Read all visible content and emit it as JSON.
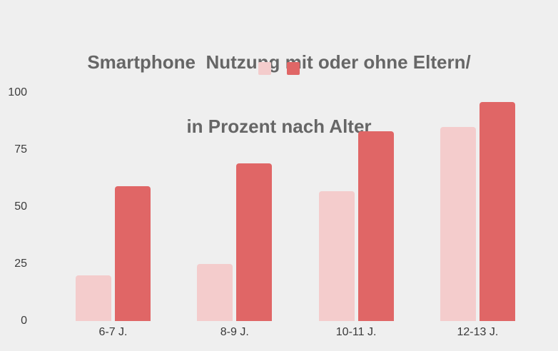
{
  "colors": {
    "background": "#efefef",
    "title_text": "#666666",
    "axis_text": "#3b3b3b"
  },
  "chart_data": {
    "type": "bar",
    "title_lines": [
      "Smartphone  Nutzung mit oder ohne Eltern/",
      "in Prozent nach Alter"
    ],
    "title": "Smartphone  Nutzung mit oder ohne Eltern/ in Prozent nach Alter",
    "categories": [
      "6-7 J.",
      "8-9 J.",
      "10-11 J.",
      "12-13 J."
    ],
    "series": [
      {
        "name": "",
        "color": "#f4cccc",
        "values": [
          20,
          25,
          57,
          85
        ]
      },
      {
        "name": "",
        "color": "#e06666",
        "values": [
          59,
          69,
          83,
          96
        ]
      }
    ],
    "xlabel": "",
    "ylabel": "",
    "yticks": [
      0,
      25,
      50,
      75,
      100
    ],
    "ylim": [
      0,
      100
    ],
    "grid": false,
    "legend": {
      "position": "top-center",
      "swatches": [
        "#f4cccc",
        "#e06666"
      ],
      "labels": [
        "",
        ""
      ]
    }
  }
}
